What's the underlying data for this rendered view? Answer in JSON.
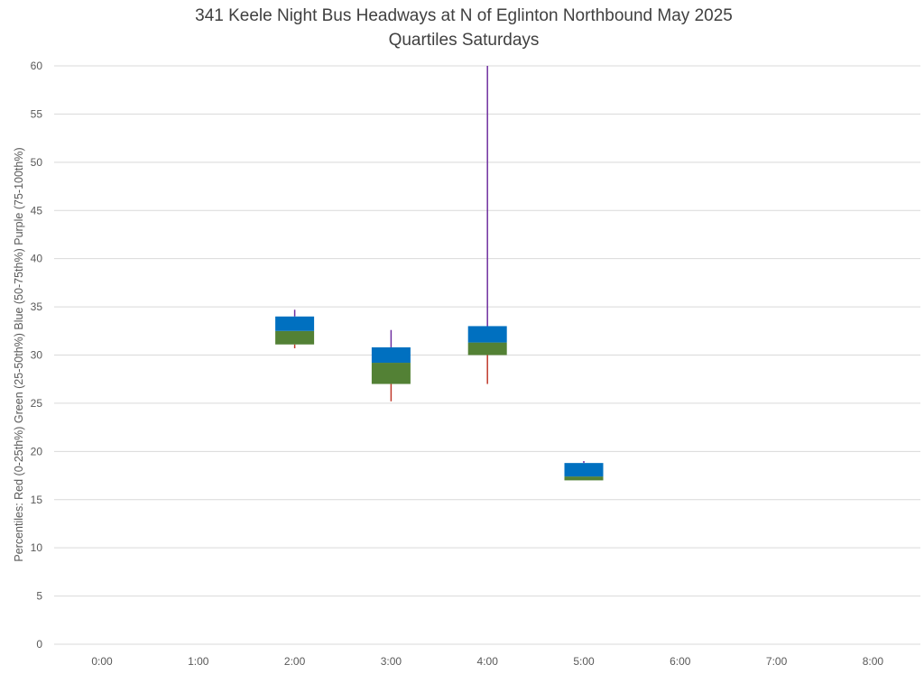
{
  "chart_data": {
    "type": "box",
    "title": "341 Keele Night Bus Headways at N of Eglinton Northbound May 2025",
    "subtitle": "Quartiles Saturdays",
    "ylabel": "Percentiles:  Red (0-25th%)  Green (25-50th%)  Blue (50-75th%)  Purple (75-100th%)",
    "xlabel": "",
    "ylim": [
      0,
      60
    ],
    "yticks": [
      "0",
      "5",
      "10",
      "15",
      "20",
      "25",
      "30",
      "35",
      "40",
      "45",
      "50",
      "55",
      "60"
    ],
    "categories": [
      "0:00",
      "1:00",
      "2:00",
      "3:00",
      "4:00",
      "5:00",
      "6:00",
      "7:00",
      "8:00"
    ],
    "grid": true,
    "legend": "none",
    "colors": {
      "min_to_q1": "#c0392b",
      "q1_to_median": "#538135",
      "median_to_q3": "#0070c0",
      "q3_to_max": "#7030a0",
      "grid": "#d9d9d9",
      "text": "#595959",
      "title": "#404040"
    },
    "boxes": [
      {
        "category": "2:00",
        "min": 30.7,
        "q1": 31.1,
        "median": 32.5,
        "q3": 34.0,
        "max": 34.7
      },
      {
        "category": "3:00",
        "min": 25.2,
        "q1": 27.0,
        "median": 29.2,
        "q3": 30.8,
        "max": 32.6
      },
      {
        "category": "4:00",
        "min": 27.0,
        "q1": 30.0,
        "median": 31.3,
        "q3": 33.0,
        "max": 60.0
      },
      {
        "category": "5:00",
        "min": 17.0,
        "q1": 17.0,
        "median": 17.4,
        "q3": 18.8,
        "max": 19.0
      }
    ]
  }
}
